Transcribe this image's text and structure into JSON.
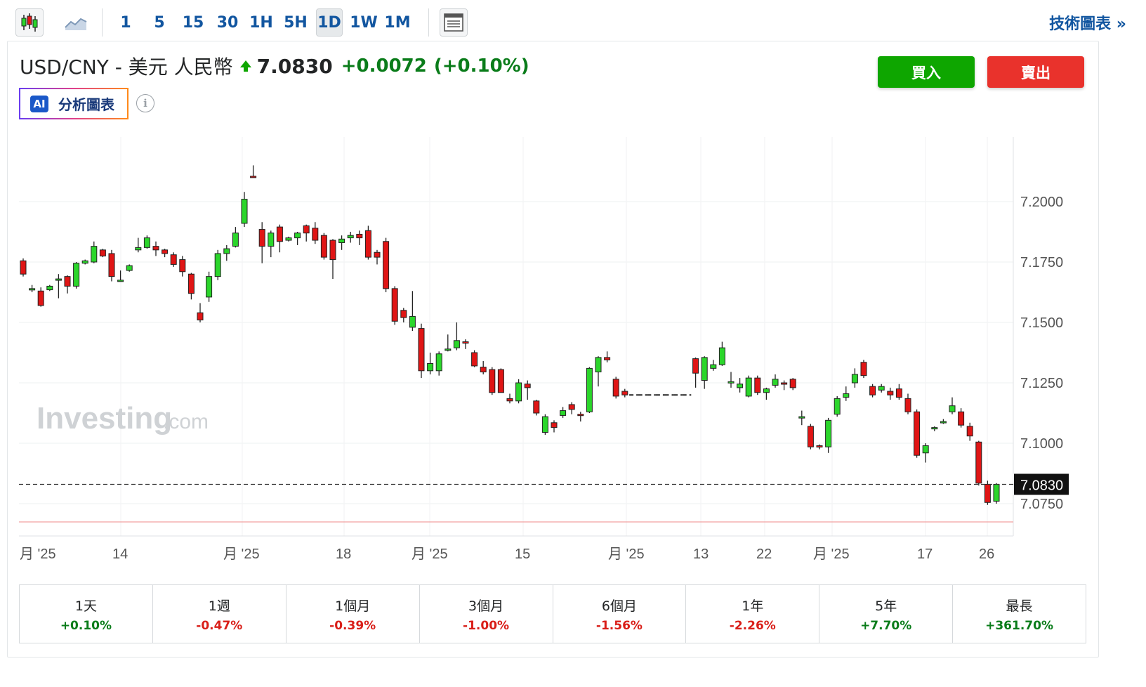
{
  "toolbar": {
    "intervals": [
      "1",
      "5",
      "15",
      "30",
      "1H",
      "5H",
      "1D",
      "1W",
      "1M"
    ],
    "active_interval": "1D",
    "tech_link": "技術圖表 »"
  },
  "instrument": {
    "name": "USD/CNY - 美元 人民幣",
    "price": "7.0830",
    "change": "+0.0072",
    "change_pct": "(+0.10%)"
  },
  "actions": {
    "buy": "買入",
    "sell": "賣出"
  },
  "ai": {
    "badge": "AI",
    "label": "分析圖表",
    "info": "i"
  },
  "watermark": {
    "main": "Investing",
    "suffix": ".com"
  },
  "colors": {
    "up": "#2bd62b",
    "down": "#e01515",
    "accent": "#1256a0",
    "buy": "#0ea600",
    "sell": "#e9322c"
  },
  "chart_data": {
    "type": "candlestick",
    "y_ticks": [
      "7.2000",
      "7.1750",
      "7.1500",
      "7.1250",
      "7.1000",
      "7.0750"
    ],
    "y_tick_values": [
      7.2,
      7.175,
      7.15,
      7.125,
      7.1,
      7.075
    ],
    "x_tick_labels": [
      "月 '25",
      "14",
      "月 '25",
      "18",
      "月 '25",
      "15",
      "月 '25",
      "13",
      "22",
      "月 '25",
      "17",
      "26"
    ],
    "current_price_label": "7.0830",
    "current_price": 7.083,
    "ylim": [
      7.064,
      7.226
    ],
    "candles": [
      [
        7.1755,
        7.17,
        7.1765,
        7.169
      ],
      [
        7.1635,
        7.164,
        7.1655,
        7.1625
      ],
      [
        7.163,
        7.157,
        7.1645,
        7.1565
      ],
      [
        7.1635,
        7.165,
        7.1655,
        7.163
      ],
      [
        7.168,
        7.168,
        7.17,
        7.16
      ],
      [
        7.169,
        7.165,
        7.1695,
        7.162
      ],
      [
        7.165,
        7.1745,
        7.175,
        7.164
      ],
      [
        7.1745,
        7.1755,
        7.176,
        7.174
      ],
      [
        7.175,
        7.1815,
        7.1835,
        7.1745
      ],
      [
        7.18,
        7.1775,
        7.1805,
        7.177
      ],
      [
        7.1785,
        7.169,
        7.18,
        7.167
      ],
      [
        7.1675,
        7.1675,
        7.1715,
        7.167
      ],
      [
        7.1715,
        7.1735,
        7.174,
        7.171
      ],
      [
        7.18,
        7.181,
        7.185,
        7.179
      ],
      [
        7.181,
        7.185,
        7.186,
        7.1805
      ],
      [
        7.1815,
        7.18,
        7.1835,
        7.1775
      ],
      [
        7.18,
        7.1785,
        7.1805,
        7.177
      ],
      [
        7.178,
        7.174,
        7.179,
        7.173
      ],
      [
        7.176,
        7.171,
        7.1775,
        7.169
      ],
      [
        7.17,
        7.162,
        7.1705,
        7.1595
      ],
      [
        7.154,
        7.151,
        7.158,
        7.15
      ],
      [
        7.1605,
        7.169,
        7.171,
        7.1585
      ],
      [
        7.169,
        7.1785,
        7.18,
        7.1675
      ],
      [
        7.1785,
        7.1805,
        7.182,
        7.1755
      ],
      [
        7.1815,
        7.187,
        7.1895,
        7.181
      ],
      [
        7.191,
        7.201,
        7.204,
        7.1895
      ],
      [
        7.2105,
        7.21,
        7.215,
        7.21
      ],
      [
        7.1885,
        7.1815,
        7.1915,
        7.1745
      ],
      [
        7.1815,
        7.187,
        7.188,
        7.177
      ],
      [
        7.1895,
        7.1835,
        7.1905,
        7.179
      ],
      [
        7.184,
        7.185,
        7.1855,
        7.1835
      ],
      [
        7.185,
        7.187,
        7.1875,
        7.182
      ],
      [
        7.19,
        7.187,
        7.1905,
        7.1835
      ],
      [
        7.189,
        7.184,
        7.1915,
        7.1825
      ],
      [
        7.186,
        7.177,
        7.187,
        7.176
      ],
      [
        7.184,
        7.176,
        7.1845,
        7.168
      ],
      [
        7.183,
        7.1845,
        7.186,
        7.18
      ],
      [
        7.185,
        7.186,
        7.1875,
        7.183
      ],
      [
        7.1865,
        7.185,
        7.188,
        7.182
      ],
      [
        7.188,
        7.177,
        7.19,
        7.176
      ],
      [
        7.179,
        7.177,
        7.18,
        7.174
      ],
      [
        7.1835,
        7.164,
        7.185,
        7.1625
      ],
      [
        7.164,
        7.1505,
        7.165,
        7.149
      ],
      [
        7.155,
        7.152,
        7.156,
        7.15
      ],
      [
        7.148,
        7.1525,
        7.163,
        7.1465
      ],
      [
        7.1475,
        7.13,
        7.1495,
        7.127
      ],
      [
        7.13,
        7.133,
        7.1375,
        7.1285
      ],
      [
        7.13,
        7.137,
        7.138,
        7.128
      ],
      [
        7.1385,
        7.139,
        7.145,
        7.138
      ],
      [
        7.1395,
        7.1425,
        7.15,
        7.1385
      ],
      [
        7.142,
        7.1415,
        7.143,
        7.139
      ],
      [
        7.1375,
        7.132,
        7.1385,
        7.1315
      ],
      [
        7.1315,
        7.1295,
        7.134,
        7.1285
      ],
      [
        7.1305,
        7.121,
        7.1315,
        7.12
      ],
      [
        7.1305,
        7.121,
        7.131,
        7.121
      ],
      [
        7.1185,
        7.1175,
        7.1205,
        7.1165
      ],
      [
        7.1175,
        7.125,
        7.1265,
        7.1165
      ],
      [
        7.1245,
        7.123,
        7.126,
        7.118
      ],
      [
        7.1175,
        7.1125,
        7.118,
        7.1115
      ],
      [
        7.1045,
        7.111,
        7.112,
        7.1035
      ],
      [
        7.1085,
        7.1065,
        7.1095,
        7.1045
      ],
      [
        7.1115,
        7.1135,
        7.115,
        7.1105
      ],
      [
        7.116,
        7.114,
        7.117,
        7.112
      ],
      [
        7.112,
        7.1115,
        7.113,
        7.109
      ],
      [
        7.113,
        7.131,
        7.1315,
        7.1125
      ],
      [
        7.1295,
        7.1355,
        7.136,
        7.1235
      ],
      [
        7.1355,
        7.1345,
        7.138,
        7.1335
      ],
      [
        7.1265,
        7.1195,
        7.1275,
        7.1185
      ],
      [
        7.1215,
        7.12,
        7.1225,
        7.119
      ],
      [
        7.12,
        7.12,
        7.12,
        7.12
      ],
      [
        7.12,
        7.12,
        7.12,
        7.12
      ],
      [
        7.12,
        7.12,
        7.12,
        7.12
      ],
      [
        7.12,
        7.12,
        7.12,
        7.12
      ],
      [
        7.12,
        7.12,
        7.12,
        7.12
      ],
      [
        7.12,
        7.12,
        7.12,
        7.12
      ],
      [
        7.12,
        7.12,
        7.12,
        7.12
      ],
      [
        7.135,
        7.129,
        7.1355,
        7.123
      ],
      [
        7.126,
        7.1355,
        7.136,
        7.1225
      ],
      [
        7.131,
        7.1325,
        7.1345,
        7.13
      ],
      [
        7.1325,
        7.1395,
        7.142,
        7.132
      ],
      [
        7.1255,
        7.1255,
        7.1295,
        7.123
      ],
      [
        7.123,
        7.1245,
        7.127,
        7.121
      ],
      [
        7.1195,
        7.127,
        7.128,
        7.119
      ],
      [
        7.127,
        7.121,
        7.128,
        7.12
      ],
      [
        7.121,
        7.1225,
        7.123,
        7.118
      ],
      [
        7.124,
        7.1265,
        7.1285,
        7.123
      ],
      [
        7.125,
        7.1245,
        7.126,
        7.122
      ],
      [
        7.1265,
        7.123,
        7.127,
        7.122
      ],
      [
        7.1105,
        7.111,
        7.1135,
        7.1075
      ],
      [
        7.107,
        7.0985,
        7.108,
        7.0975
      ],
      [
        7.099,
        7.0985,
        7.0995,
        7.0975
      ],
      [
        7.0985,
        7.1095,
        7.1105,
        7.096
      ],
      [
        7.112,
        7.1185,
        7.1195,
        7.111
      ],
      [
        7.119,
        7.1205,
        7.1235,
        7.1175
      ],
      [
        7.125,
        7.1285,
        7.131,
        7.123
      ],
      [
        7.1335,
        7.128,
        7.1345,
        7.127
      ],
      [
        7.1235,
        7.12,
        7.1245,
        7.119
      ],
      [
        7.122,
        7.1235,
        7.1245,
        7.121
      ],
      [
        7.1215,
        7.12,
        7.123,
        7.118
      ],
      [
        7.1225,
        7.119,
        7.1245,
        7.118
      ],
      [
        7.1185,
        7.113,
        7.1205,
        7.112
      ],
      [
        7.113,
        7.095,
        7.114,
        7.094
      ],
      [
        7.096,
        7.099,
        7.1,
        7.092
      ],
      [
        7.106,
        7.1065,
        7.107,
        7.105
      ],
      [
        7.109,
        7.109,
        7.11,
        7.108
      ],
      [
        7.113,
        7.1155,
        7.119,
        7.112
      ],
      [
        7.113,
        7.1075,
        7.1145,
        7.1065
      ],
      [
        7.107,
        7.103,
        7.1085,
        7.101
      ],
      [
        7.1005,
        7.0835,
        7.101,
        7.0825
      ],
      [
        7.083,
        7.0755,
        7.0845,
        7.0745
      ],
      [
        7.076,
        7.083,
        7.0835,
        7.075
      ]
    ]
  },
  "performance": [
    {
      "label": "1天",
      "value": "+0.10%",
      "dir": "pos"
    },
    {
      "label": "1週",
      "value": "-0.47%",
      "dir": "neg"
    },
    {
      "label": "1個月",
      "value": "-0.39%",
      "dir": "neg"
    },
    {
      "label": "3個月",
      "value": "-1.00%",
      "dir": "neg"
    },
    {
      "label": "6個月",
      "value": "-1.56%",
      "dir": "neg"
    },
    {
      "label": "1年",
      "value": "-2.26%",
      "dir": "neg"
    },
    {
      "label": "5年",
      "value": "+7.70%",
      "dir": "pos"
    },
    {
      "label": "最長",
      "value": "+361.70%",
      "dir": "pos"
    }
  ]
}
